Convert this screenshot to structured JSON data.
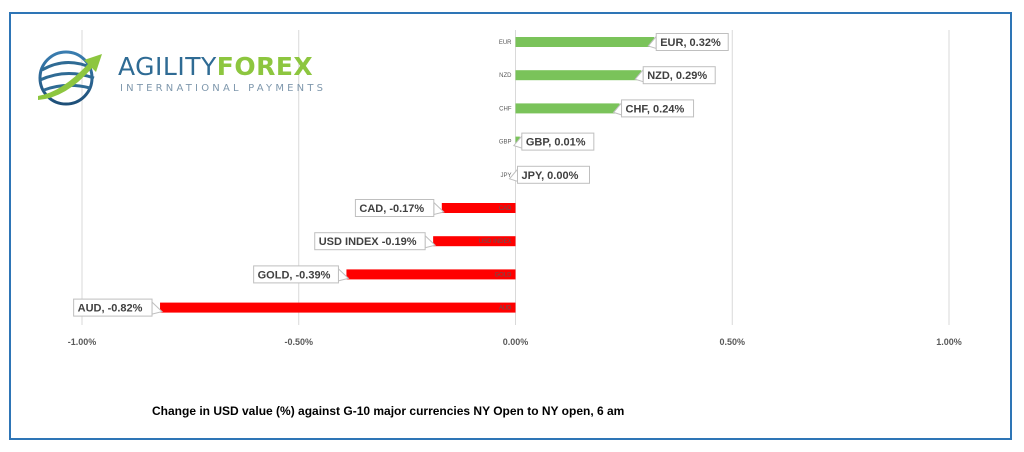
{
  "logo": {
    "word_part1": "AGILITY",
    "word_part2": "FOREX",
    "subtitle": "INTERNATIONAL PAYMENTS"
  },
  "chart_data": {
    "type": "bar",
    "orientation": "horizontal",
    "categories": [
      "EUR",
      "NZD",
      "CHF",
      "GBP",
      "JPY",
      "CAD",
      "USD INDEX",
      "GOLD",
      "AUD"
    ],
    "values": [
      0.32,
      0.29,
      0.24,
      0.01,
      0.0,
      -0.17,
      -0.19,
      -0.39,
      -0.82
    ],
    "data_labels": [
      "EUR, 0.32%",
      "NZD, 0.29%",
      "CHF, 0.24%",
      "GBP, 0.01%",
      "JPY, 0.00%",
      "CAD, -0.17%",
      "USD INDEX -0.19%",
      "GOLD, -0.39%",
      "AUD, -0.82%"
    ],
    "xlim": [
      -1.0,
      1.0
    ],
    "x_ticks": [
      -1.0,
      -0.5,
      0.0,
      0.5,
      1.0
    ],
    "x_tick_labels": [
      "-1.00%",
      "-0.50%",
      "0.00%",
      "0.50%",
      "1.00%"
    ],
    "grid": "vertical",
    "colors": {
      "positive": "#7ac35a",
      "negative": "#ff0000",
      "frame": "#2e75b6"
    },
    "caption": "Change in  USD value (%)  against  G-10 major currencies NY Open to  NY open, 6 am"
  }
}
